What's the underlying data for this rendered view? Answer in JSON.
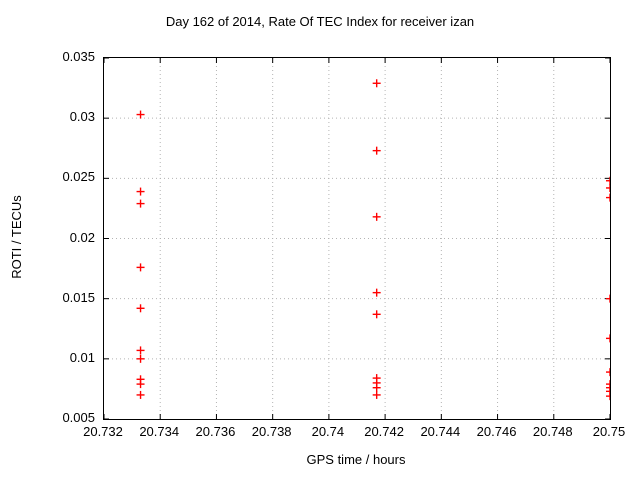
{
  "title": "Day 162 of 2014, Rate Of TEC Index for receiver izan",
  "colors": {
    "marker": "#ff0000",
    "grid": "#b4b4b4",
    "axis": "#000000",
    "background": "#ffffff"
  },
  "chart_data": {
    "type": "scatter",
    "title": "Day 162 of 2014, Rate Of TEC Index for receiver izan",
    "xlabel": "GPS time / hours",
    "ylabel": "ROTI / TECUs",
    "xlim": [
      20.732,
      20.75
    ],
    "ylim": [
      0.005,
      0.035
    ],
    "grid": true,
    "legend": "none",
    "marker": {
      "shape": "plus",
      "color": "#ff0000",
      "size": 8
    },
    "x_ticks": [
      {
        "v": 20.732,
        "label": "20.732"
      },
      {
        "v": 20.734,
        "label": "20.734"
      },
      {
        "v": 20.736,
        "label": "20.736"
      },
      {
        "v": 20.738,
        "label": "20.738"
      },
      {
        "v": 20.74,
        "label": "20.74"
      },
      {
        "v": 20.742,
        "label": "20.742"
      },
      {
        "v": 20.744,
        "label": "20.744"
      },
      {
        "v": 20.746,
        "label": "20.746"
      },
      {
        "v": 20.748,
        "label": "20.748"
      },
      {
        "v": 20.75,
        "label": "20.75"
      }
    ],
    "y_ticks": [
      {
        "v": 0.005,
        "label": "0.005"
      },
      {
        "v": 0.01,
        "label": "0.01"
      },
      {
        "v": 0.015,
        "label": "0.015"
      },
      {
        "v": 0.02,
        "label": "0.02"
      },
      {
        "v": 0.025,
        "label": "0.025"
      },
      {
        "v": 0.03,
        "label": "0.03"
      },
      {
        "v": 0.035,
        "label": "0.035"
      }
    ],
    "series": [
      {
        "name": "ROTI",
        "points": [
          [
            20.7333,
            0.0303
          ],
          [
            20.7333,
            0.0239
          ],
          [
            20.7333,
            0.0229
          ],
          [
            20.7333,
            0.0176
          ],
          [
            20.7333,
            0.0142
          ],
          [
            20.7333,
            0.0107
          ],
          [
            20.7333,
            0.01
          ],
          [
            20.7333,
            0.0083
          ],
          [
            20.7333,
            0.0079
          ],
          [
            20.7333,
            0.007
          ],
          [
            20.7417,
            0.0329
          ],
          [
            20.7417,
            0.0273
          ],
          [
            20.7417,
            0.0218
          ],
          [
            20.7417,
            0.0155
          ],
          [
            20.7417,
            0.0137
          ],
          [
            20.7417,
            0.0084
          ],
          [
            20.7417,
            0.008
          ],
          [
            20.7417,
            0.0076
          ],
          [
            20.7417,
            0.007
          ],
          [
            20.75,
            0.0248
          ],
          [
            20.75,
            0.0242
          ],
          [
            20.75,
            0.0234
          ],
          [
            20.75,
            0.015
          ],
          [
            20.75,
            0.0117
          ],
          [
            20.75,
            0.0089
          ],
          [
            20.75,
            0.0079
          ],
          [
            20.75,
            0.0076
          ],
          [
            20.75,
            0.0073
          ],
          [
            20.75,
            0.0069
          ]
        ]
      }
    ]
  }
}
